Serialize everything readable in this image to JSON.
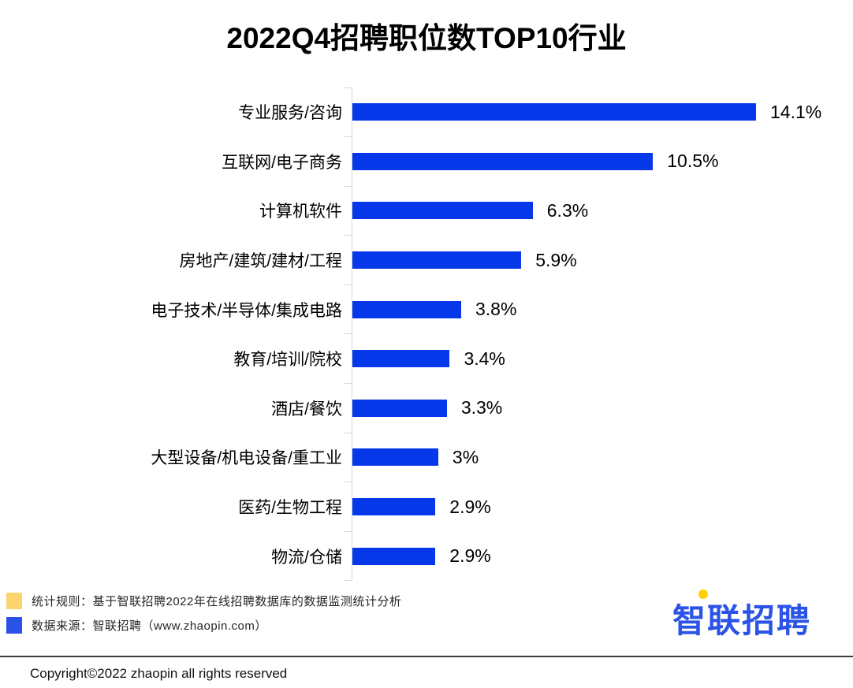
{
  "title": "2022Q4招聘职位数TOP10行业",
  "chart_data": {
    "type": "bar",
    "orientation": "horizontal",
    "title": "2022Q4招聘职位数TOP10行业",
    "categories": [
      "专业服务/咨询",
      "互联网/电子商务",
      "计算机软件",
      "房地产/建筑/建材/工程",
      "电子技术/半导体/集成电路",
      "教育/培训/院校",
      "酒店/餐饮",
      "大型设备/机电设备/重工业",
      "医药/生物工程",
      "物流/仓储"
    ],
    "values": [
      14.1,
      10.5,
      6.3,
      5.9,
      3.8,
      3.4,
      3.3,
      3,
      2.9,
      2.9
    ],
    "value_labels": [
      "14.1%",
      "10.5%",
      "6.3%",
      "5.9%",
      "3.8%",
      "3.4%",
      "3.3%",
      "3%",
      "2.9%",
      "2.9%"
    ],
    "unit": "%",
    "xlabel": "",
    "ylabel": "",
    "xlim": [
      0,
      14.1
    ],
    "grid": false,
    "legend_position": "none",
    "value_label_position": "outside-end",
    "bar_color": "#0637e8",
    "axis_color": "#d9d9d9"
  },
  "footer": {
    "notes": [
      {
        "swatch_icon": "yellow-square",
        "swatch_color": "#fbd46e",
        "text": "统计规则：基于智联招聘2022年在线招聘数据库的数据监测统计分析"
      },
      {
        "swatch_icon": "blue-square",
        "swatch_color": "#2a52e8",
        "text": "数据来源：智联招聘（www.zhaopin.com）"
      }
    ],
    "logo_text": "智联招聘",
    "copyright": "Copyright©2022 zhaopin all rights reserved"
  },
  "colors": {
    "bar": "#0637e8",
    "axis": "#d9d9d9",
    "legend_yellow": "#fbd46e",
    "legend_blue": "#2a52e8",
    "logo_blue": "#2b53e6",
    "logo_yellow": "#ffd200",
    "divider": "#3d3d3d"
  }
}
